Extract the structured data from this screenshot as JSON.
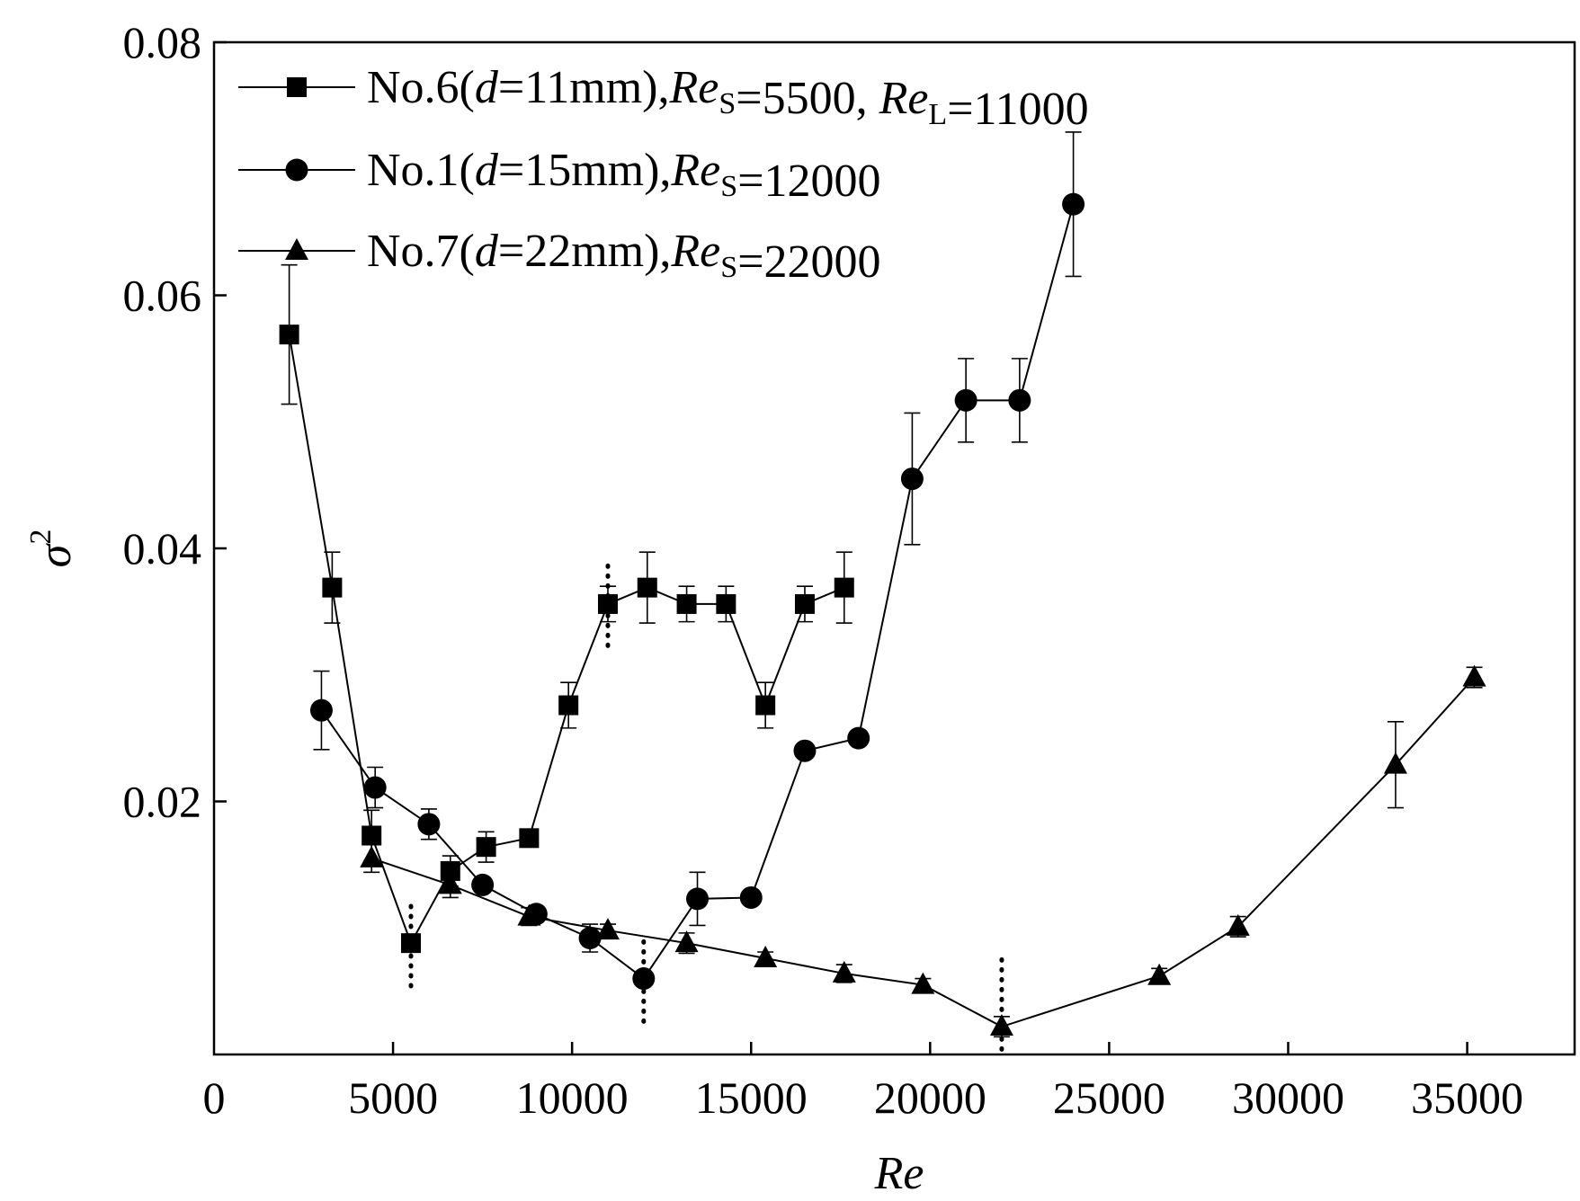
{
  "chart_data": {
    "type": "line",
    "xlabel": "Re",
    "ylabel": "σ",
    "ylabel_sup": "2",
    "xlim": [
      0,
      38000
    ],
    "ylim": [
      0.0,
      0.08
    ],
    "x_ticks": [
      0,
      5000,
      10000,
      15000,
      20000,
      25000,
      30000,
      35000
    ],
    "x_tick_labels": [
      "0",
      "5000",
      "10000",
      "15000",
      "20000",
      "25000",
      "30000",
      "35000"
    ],
    "y_ticks": [
      0.02,
      0.04,
      0.06,
      0.08
    ],
    "y_tick_labels": [
      "0.02",
      "0.04",
      "0.06",
      "0.08"
    ],
    "legend_position": "top-left",
    "series": [
      {
        "name": "No.6(d=11mm),ReS=5500, ReL=11000",
        "label_parts": [
          {
            "t": "No.6(",
            "s": "n"
          },
          {
            "t": "d",
            "s": "i"
          },
          {
            "t": "=11mm),",
            "s": "n"
          },
          {
            "t": "Re",
            "s": "i"
          },
          {
            "t": "S",
            "s": "sub"
          },
          {
            "t": "=5500, ",
            "s": "n"
          },
          {
            "t": "Re",
            "s": "i"
          },
          {
            "t": "L",
            "s": "sub"
          },
          {
            "t": "=11000",
            "s": "n"
          }
        ],
        "marker": "square",
        "x": [
          2100,
          3300,
          4400,
          5500,
          6600,
          7600,
          8800,
          9900,
          11000,
          12100,
          13200,
          14300,
          15400,
          16500,
          17600
        ],
        "y": [
          0.0569,
          0.0369,
          0.0173,
          0.0088,
          0.0145,
          0.0164,
          0.0171,
          0.0276,
          0.0356,
          0.0369,
          0.0356,
          0.0356,
          0.0276,
          0.0356,
          0.0369
        ],
        "err": [
          0.0055,
          0.0028,
          0.002,
          0.0007,
          0.0012,
          0.0012,
          0.0006,
          0.0018,
          0.0014,
          0.0028,
          0.0014,
          0.0014,
          0.0018,
          0.0014,
          0.0028
        ]
      },
      {
        "name": "No.1(d=15mm),ReS=12000",
        "label_parts": [
          {
            "t": "No.1(",
            "s": "n"
          },
          {
            "t": "d",
            "s": "i"
          },
          {
            "t": "=15mm),",
            "s": "n"
          },
          {
            "t": "Re",
            "s": "i"
          },
          {
            "t": "S",
            "s": "sub"
          },
          {
            "t": "=12000",
            "s": "n"
          }
        ],
        "marker": "circle",
        "x": [
          3000,
          4500,
          6000,
          7500,
          9000,
          10500,
          12000,
          13500,
          15000,
          16500,
          18000,
          19500,
          21000,
          22500,
          24000
        ],
        "y": [
          0.0272,
          0.0211,
          0.0182,
          0.0134,
          0.0111,
          0.0092,
          0.006,
          0.0123,
          0.0124,
          0.024,
          0.025,
          0.0455,
          0.0517,
          0.0517,
          0.0672
        ],
        "err": [
          0.0031,
          0.0016,
          0.0012,
          0.0004,
          0.0004,
          0.0011,
          0.0004,
          0.0021,
          0.0004,
          0.0004,
          0.0004,
          0.0052,
          0.0033,
          0.0033,
          0.0057
        ]
      },
      {
        "name": "No.7(d=22mm),ReS=22000",
        "label_parts": [
          {
            "t": "No.7(",
            "s": "n"
          },
          {
            "t": "d",
            "s": "i"
          },
          {
            "t": "=22mm),",
            "s": "n"
          },
          {
            "t": "Re",
            "s": "i"
          },
          {
            "t": "S",
            "s": "sub"
          },
          {
            "t": "=22000",
            "s": "n"
          }
        ],
        "marker": "triangle",
        "x": [
          4400,
          6600,
          8800,
          11000,
          13200,
          15400,
          17600,
          19800,
          22000,
          26400,
          28600,
          33000,
          35200
        ],
        "y": [
          0.0155,
          0.0134,
          0.0109,
          0.0098,
          0.0088,
          0.0076,
          0.0064,
          0.0055,
          0.0022,
          0.0062,
          0.0101,
          0.0229,
          0.0298
        ],
        "err": [
          0.0011,
          0.001,
          0.0007,
          0.0005,
          0.0008,
          0.0005,
          0.0007,
          0.0005,
          0.0008,
          0.0006,
          0.0008,
          0.0034,
          0.0008
        ]
      }
    ],
    "annotations": [
      {
        "kind": "dotted-vertical",
        "x": 5500,
        "y_range": [
          0.0054,
          0.0122
        ]
      },
      {
        "kind": "dotted-vertical",
        "x": 11000,
        "y_range": [
          0.0323,
          0.0393
        ]
      },
      {
        "kind": "dotted-vertical",
        "x": 12000,
        "y_range": [
          0.0026,
          0.0095
        ]
      },
      {
        "kind": "dotted-vertical",
        "x": 22000,
        "y_range": [
          0.0004,
          0.0075
        ]
      }
    ]
  }
}
